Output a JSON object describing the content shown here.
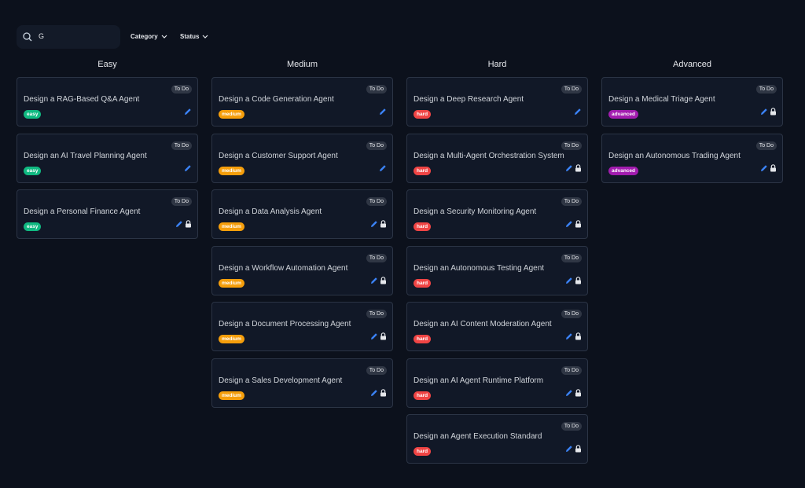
{
  "search": {
    "value": "G"
  },
  "filters": [
    "Category",
    "Status"
  ],
  "columns": [
    {
      "title": "Easy",
      "tag_color": "#10b981",
      "cards": [
        {
          "title": "Design a RAG-Based Q&A Agent",
          "status": "To Do",
          "tag": "easy",
          "locked": false
        },
        {
          "title": "Design an AI Travel Planning Agent",
          "status": "To Do",
          "tag": "easy",
          "locked": false
        },
        {
          "title": "Design a Personal Finance Agent",
          "status": "To Do",
          "tag": "easy",
          "locked": true
        }
      ]
    },
    {
      "title": "Medium",
      "tag_color": "#f59e0b",
      "cards": [
        {
          "title": "Design a Code Generation Agent",
          "status": "To Do",
          "tag": "medium",
          "locked": false
        },
        {
          "title": "Design a Customer Support Agent",
          "status": "To Do",
          "tag": "medium",
          "locked": false
        },
        {
          "title": "Design a Data Analysis Agent",
          "status": "To Do",
          "tag": "medium",
          "locked": true
        },
        {
          "title": "Design a Workflow Automation Agent",
          "status": "To Do",
          "tag": "medium",
          "locked": true
        },
        {
          "title": "Design a Document Processing Agent",
          "status": "To Do",
          "tag": "medium",
          "locked": true
        },
        {
          "title": "Design a Sales Development Agent",
          "status": "To Do",
          "tag": "medium",
          "locked": true
        }
      ]
    },
    {
      "title": "Hard",
      "tag_color": "#ef4444",
      "cards": [
        {
          "title": "Design a Deep Research Agent",
          "status": "To Do",
          "tag": "hard",
          "locked": false
        },
        {
          "title": "Design a Multi-Agent Orchestration System",
          "status": "To Do",
          "tag": "hard",
          "locked": true
        },
        {
          "title": "Design a Security Monitoring Agent",
          "status": "To Do",
          "tag": "hard",
          "locked": true
        },
        {
          "title": "Design an Autonomous Testing Agent",
          "status": "To Do",
          "tag": "hard",
          "locked": true
        },
        {
          "title": "Design an AI Content Moderation Agent",
          "status": "To Do",
          "tag": "hard",
          "locked": true
        },
        {
          "title": "Design an AI Agent Runtime Platform",
          "status": "To Do",
          "tag": "hard",
          "locked": true
        },
        {
          "title": "Design an Agent Execution Standard",
          "status": "To Do",
          "tag": "hard",
          "locked": true
        }
      ]
    },
    {
      "title": "Advanced",
      "tag_color": "#a21caf",
      "cards": [
        {
          "title": "Design a Medical Triage Agent",
          "status": "To Do",
          "tag": "advanced",
          "locked": true
        },
        {
          "title": "Design an Autonomous Trading Agent",
          "status": "To Do",
          "tag": "advanced",
          "locked": true
        }
      ]
    }
  ]
}
